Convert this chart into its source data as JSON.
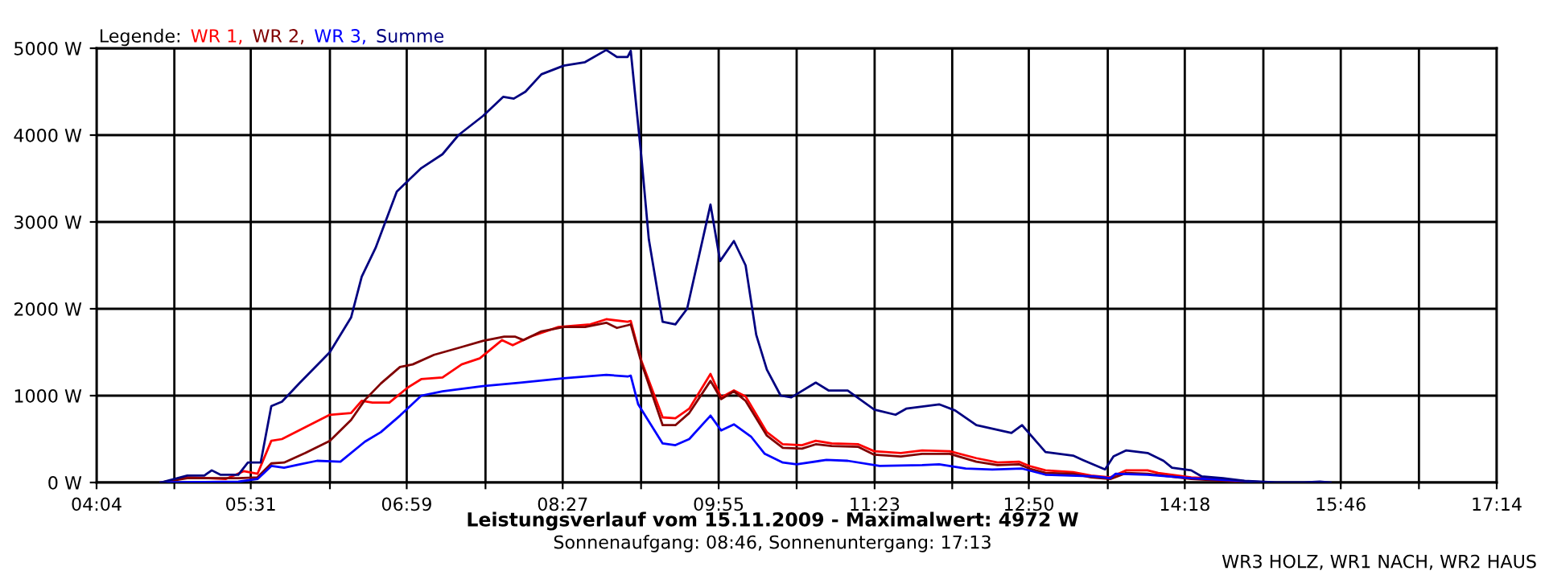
{
  "chart_data": {
    "type": "line",
    "title": "Leistungsverlauf vom 15.11.2009 - Maximalwert: 4972 W",
    "subtitle": "Sonnenaufgang: 08:46, Sonnenuntergang: 17:13",
    "legend_title": "Legende:",
    "annotations": [
      "WR3 HOLZ, WR1 NACH, WR2 HAUS"
    ],
    "xlim": [
      4.0667,
      17.2333
    ],
    "xticks": [
      {
        "value": 4.0667,
        "label": "04:04"
      },
      {
        "value": 4.7981,
        "label": null
      },
      {
        "value": 5.5167,
        "label": "05:31"
      },
      {
        "value": 6.2611,
        "label": null
      },
      {
        "value": 6.9833,
        "label": "06:59"
      },
      {
        "value": 7.7241,
        "label": null
      },
      {
        "value": 8.45,
        "label": "08:27"
      },
      {
        "value": 9.187,
        "label": null
      },
      {
        "value": 9.9167,
        "label": "09:55"
      },
      {
        "value": 10.65,
        "label": null
      },
      {
        "value": 11.3833,
        "label": "11:23"
      },
      {
        "value": 12.113,
        "label": null
      },
      {
        "value": 12.8333,
        "label": "12:50"
      },
      {
        "value": 13.5759,
        "label": null
      },
      {
        "value": 14.3,
        "label": "14:18"
      },
      {
        "value": 15.0389,
        "label": null
      },
      {
        "value": 15.7667,
        "label": "15:46"
      },
      {
        "value": 16.5019,
        "label": null
      },
      {
        "value": 17.2333,
        "label": "17:14"
      }
    ],
    "ylim": [
      0,
      5000
    ],
    "yticks": [
      {
        "value": 0,
        "label": "0 W"
      },
      {
        "value": 1000,
        "label": "1000 W"
      },
      {
        "value": 2000,
        "label": "2000 W"
      },
      {
        "value": 3000,
        "label": "3000 W"
      },
      {
        "value": 4000,
        "label": "4000 W"
      },
      {
        "value": 5000,
        "label": "5000 W"
      }
    ],
    "grid": true,
    "legend": "top left",
    "marker": "none",
    "line_style": "solid",
    "series": [
      {
        "name": "WR 1,",
        "color": "#ff0000",
        "x": [
          4.67,
          4.92,
          5.28,
          5.45,
          5.58,
          5.71,
          5.81,
          6.26,
          6.46,
          6.56,
          6.66,
          6.82,
          6.99,
          7.12,
          7.32,
          7.5,
          7.67,
          7.88,
          7.98,
          8.15,
          8.41,
          8.71,
          8.86,
          9.06,
          9.09,
          9.19,
          9.39,
          9.51,
          9.64,
          9.84,
          9.94,
          10.06,
          10.17,
          10.37,
          10.52,
          10.7,
          10.83,
          10.98,
          11.23,
          11.38,
          11.63,
          11.83,
          12.09,
          12.34,
          12.54,
          12.74,
          12.84,
          12.99,
          13.25,
          13.42,
          13.6,
          13.75,
          13.95,
          14.05,
          14.36,
          14.66
        ],
        "values": [
          0,
          60,
          40,
          130,
          100,
          480,
          500,
          780,
          800,
          940,
          920,
          920,
          1090,
          1190,
          1210,
          1360,
          1430,
          1640,
          1580,
          1680,
          1790,
          1820,
          1880,
          1850,
          1860,
          1400,
          750,
          740,
          850,
          1250,
          980,
          1060,
          990,
          580,
          440,
          430,
          480,
          450,
          440,
          360,
          340,
          370,
          360,
          280,
          230,
          240,
          190,
          140,
          120,
          80,
          60,
          140,
          140,
          110,
          60,
          40
        ]
      },
      {
        "name": "WR 2,",
        "color": "#800000",
        "x": [
          4.67,
          4.92,
          5.4,
          5.58,
          5.71,
          5.83,
          6.03,
          6.26,
          6.46,
          6.59,
          6.74,
          6.92,
          7.04,
          7.24,
          7.5,
          7.7,
          7.9,
          8.0,
          8.08,
          8.25,
          8.46,
          8.66,
          8.86,
          8.96,
          9.06,
          9.09,
          9.19,
          9.39,
          9.51,
          9.64,
          9.84,
          9.94,
          10.06,
          10.17,
          10.37,
          10.52,
          10.7,
          10.83,
          10.98,
          11.23,
          11.38,
          11.63,
          11.83,
          12.09,
          12.34,
          12.54,
          12.74,
          12.84,
          12.99,
          13.25,
          13.42,
          13.6,
          13.75,
          13.95,
          14.36,
          14.66,
          14.96
        ],
        "values": [
          0,
          50,
          50,
          60,
          220,
          230,
          340,
          480,
          720,
          950,
          1140,
          1330,
          1360,
          1470,
          1560,
          1630,
          1680,
          1680,
          1640,
          1740,
          1790,
          1790,
          1840,
          1780,
          1810,
          1820,
          1380,
          660,
          660,
          800,
          1170,
          960,
          1050,
          940,
          540,
          400,
          390,
          440,
          420,
          410,
          320,
          300,
          330,
          330,
          240,
          200,
          210,
          160,
          110,
          100,
          60,
          40,
          110,
          100,
          40,
          20,
          0
        ]
      },
      {
        "name": "WR 3,",
        "color": "#0000ff",
        "x": [
          4.67,
          5.4,
          5.58,
          5.71,
          5.83,
          5.98,
          6.14,
          6.36,
          6.59,
          6.74,
          6.92,
          7.12,
          7.32,
          7.7,
          8.05,
          8.46,
          8.86,
          9.06,
          9.09,
          9.16,
          9.39,
          9.51,
          9.64,
          9.84,
          9.94,
          10.06,
          10.22,
          10.35,
          10.52,
          10.65,
          10.93,
          11.13,
          11.43,
          11.83,
          11.99,
          12.24,
          12.49,
          12.77,
          12.99,
          13.45,
          13.6,
          13.65,
          13.95,
          14.36,
          14.81,
          15.11
        ],
        "values": [
          0,
          10,
          40,
          190,
          170,
          210,
          250,
          240,
          470,
          580,
          770,
          1000,
          1050,
          1110,
          1150,
          1200,
          1240,
          1220,
          1230,
          900,
          450,
          430,
          500,
          770,
          600,
          670,
          530,
          330,
          230,
          210,
          260,
          250,
          190,
          200,
          210,
          160,
          150,
          160,
          90,
          70,
          50,
          100,
          90,
          50,
          20,
          0
        ]
      },
      {
        "name": "Summe",
        "color": "#000080",
        "x": [
          4.67,
          4.92,
          5.08,
          5.15,
          5.23,
          5.4,
          5.49,
          5.61,
          5.71,
          5.81,
          5.98,
          6.26,
          6.46,
          6.56,
          6.69,
          6.89,
          7.12,
          7.32,
          7.47,
          7.7,
          7.89,
          7.99,
          8.1,
          8.25,
          8.46,
          8.66,
          8.86,
          8.96,
          9.06,
          9.09,
          9.19,
          9.26,
          9.39,
          9.51,
          9.62,
          9.84,
          9.93,
          10.06,
          10.17,
          10.27,
          10.37,
          10.5,
          10.6,
          10.83,
          10.95,
          11.13,
          11.38,
          11.58,
          11.68,
          11.99,
          12.14,
          12.34,
          12.67,
          12.77,
          12.99,
          13.25,
          13.34,
          13.55,
          13.63,
          13.75,
          13.95,
          14.1,
          14.18,
          14.36,
          14.46,
          14.66,
          14.86,
          15.16,
          15.42,
          15.57,
          15.67
        ],
        "values": [
          0,
          80,
          80,
          140,
          90,
          90,
          230,
          230,
          880,
          930,
          1150,
          1500,
          1900,
          2370,
          2700,
          3350,
          3620,
          3780,
          4000,
          4220,
          4440,
          4420,
          4500,
          4700,
          4800,
          4840,
          4980,
          4900,
          4900,
          4970,
          3750,
          2800,
          1850,
          1820,
          2000,
          3200,
          2550,
          2780,
          2500,
          1700,
          1300,
          1000,
          980,
          1150,
          1060,
          1060,
          840,
          780,
          850,
          900,
          830,
          660,
          570,
          660,
          350,
          310,
          260,
          150,
          300,
          370,
          340,
          250,
          170,
          140,
          70,
          50,
          20,
          0,
          0,
          10,
          0
        ]
      }
    ]
  }
}
